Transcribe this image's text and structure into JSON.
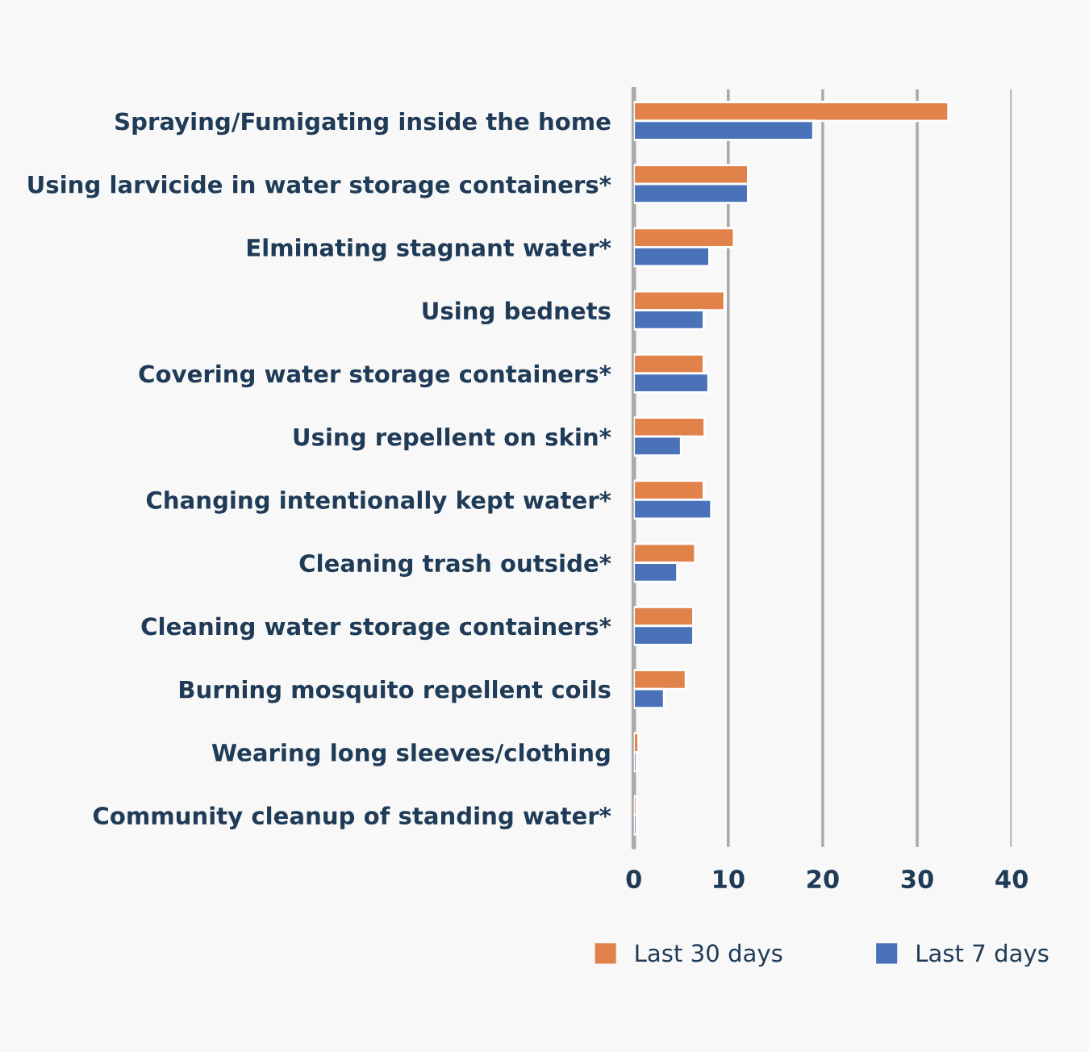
{
  "chart_data": {
    "type": "bar",
    "orientation": "horizontal",
    "categories": [
      "Spraying/Fumigating inside the home",
      "Using larvicide in water storage containers*",
      "Elminating stagnant water*",
      "Using bednets",
      "Covering water storage containers*",
      "Using repellent on skin*",
      "Changing intentionally kept water*",
      "Cleaning trash outside*",
      "Cleaning water storage containers*",
      "Burning mosquito repellent coils",
      "Wearing long sleeves/clothing",
      "Community cleanup of standing water*"
    ],
    "series": [
      {
        "name": "Last 30 days",
        "color": "#e0824a",
        "values": [
          33.3,
          12.1,
          10.6,
          9.6,
          7.4,
          7.5,
          7.4,
          6.5,
          6.3,
          5.5,
          0.5,
          0.3
        ]
      },
      {
        "name": "Last 7 days",
        "color": "#4a72b8",
        "values": [
          19.0,
          12.1,
          8.0,
          7.4,
          7.9,
          5.0,
          8.2,
          4.6,
          6.3,
          3.2,
          0.3,
          0.3
        ]
      }
    ],
    "xlim": [
      0,
      40
    ],
    "xticks": [
      0,
      10,
      20,
      30,
      40
    ],
    "grid": "x",
    "legend": "bottom"
  }
}
